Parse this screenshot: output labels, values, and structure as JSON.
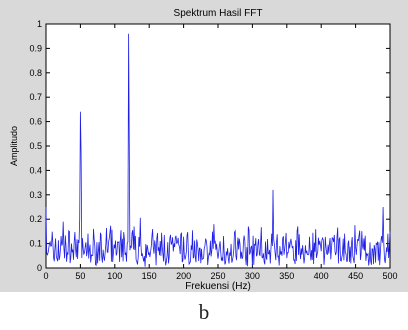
{
  "caption": "b",
  "colors": {
    "figure_bg": "#d9d9d9",
    "axes_bg": "#ffffff",
    "line": "#1f1fe6",
    "axis": "#000000"
  },
  "chart_data": {
    "type": "line",
    "title": "Spektrum Hasil FFT",
    "xlabel": "Frekuensi (Hz)",
    "ylabel": "Amplitudo",
    "xlim": [
      0,
      500
    ],
    "ylim": [
      0,
      1
    ],
    "xticks": [
      0,
      50,
      100,
      150,
      200,
      250,
      300,
      350,
      400,
      450,
      500
    ],
    "yticks": [
      0,
      0.1,
      0.2,
      0.3,
      0.4,
      0.5,
      0.6,
      0.7,
      0.8,
      0.9,
      1
    ],
    "grid": false,
    "series": [
      {
        "color": "#1f1fe6",
        "x": [
          0,
          25,
          50,
          51,
          120,
          121,
          330,
          490,
          500
        ],
        "y": [
          0.25,
          0.19,
          0.64,
          0.47,
          0.96,
          0.55,
          0.32,
          0.25,
          0.15
        ],
        "noise_floor": 0.1,
        "peaks": [
          {
            "x": 50,
            "y": 0.64
          },
          {
            "x": 120,
            "y": 0.96
          }
        ]
      }
    ]
  }
}
